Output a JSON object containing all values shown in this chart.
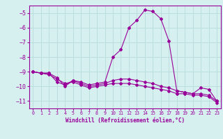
{
  "x": [
    0,
    1,
    2,
    3,
    4,
    5,
    6,
    7,
    8,
    9,
    10,
    11,
    12,
    13,
    14,
    15,
    16,
    17,
    18,
    19,
    20,
    21,
    22,
    23
  ],
  "windchill": [
    -9.0,
    -9.1,
    -9.1,
    -9.4,
    -10.0,
    -9.6,
    -9.7,
    -9.9,
    -9.8,
    -9.7,
    -8.0,
    -7.5,
    -6.0,
    -5.5,
    -4.8,
    -4.9,
    -5.4,
    -6.9,
    -10.3,
    -10.4,
    -10.5,
    -10.1,
    -10.2,
    -11.0
  ],
  "line2": [
    -9.0,
    -9.1,
    -9.1,
    -9.7,
    -9.9,
    -9.6,
    -9.8,
    -10.0,
    -9.9,
    -9.8,
    -9.6,
    -9.5,
    -9.5,
    -9.6,
    -9.7,
    -9.8,
    -10.0,
    -10.1,
    -10.3,
    -10.4,
    -10.5,
    -10.5,
    -10.6,
    -11.0
  ],
  "line3": [
    -9.0,
    -9.1,
    -9.2,
    -9.5,
    -9.8,
    -9.7,
    -9.9,
    -10.1,
    -10.0,
    -9.9,
    -9.8,
    -9.8,
    -9.8,
    -9.9,
    -10.0,
    -10.1,
    -10.2,
    -10.3,
    -10.5,
    -10.5,
    -10.6,
    -10.6,
    -10.7,
    -11.1
  ],
  "color": "#990099",
  "background": "#d6f0f0",
  "grid_color": "#bbdddd",
  "xlabel": "Windchill (Refroidissement éolien,°C)",
  "ylim": [
    -11.5,
    -4.5
  ],
  "xlim": [
    -0.5,
    23.5
  ],
  "yticks": [
    -11,
    -10,
    -9,
    -8,
    -7,
    -6,
    -5
  ],
  "xticks": [
    0,
    1,
    2,
    3,
    4,
    5,
    6,
    7,
    8,
    9,
    10,
    11,
    12,
    13,
    14,
    15,
    16,
    17,
    18,
    19,
    20,
    21,
    22,
    23
  ]
}
